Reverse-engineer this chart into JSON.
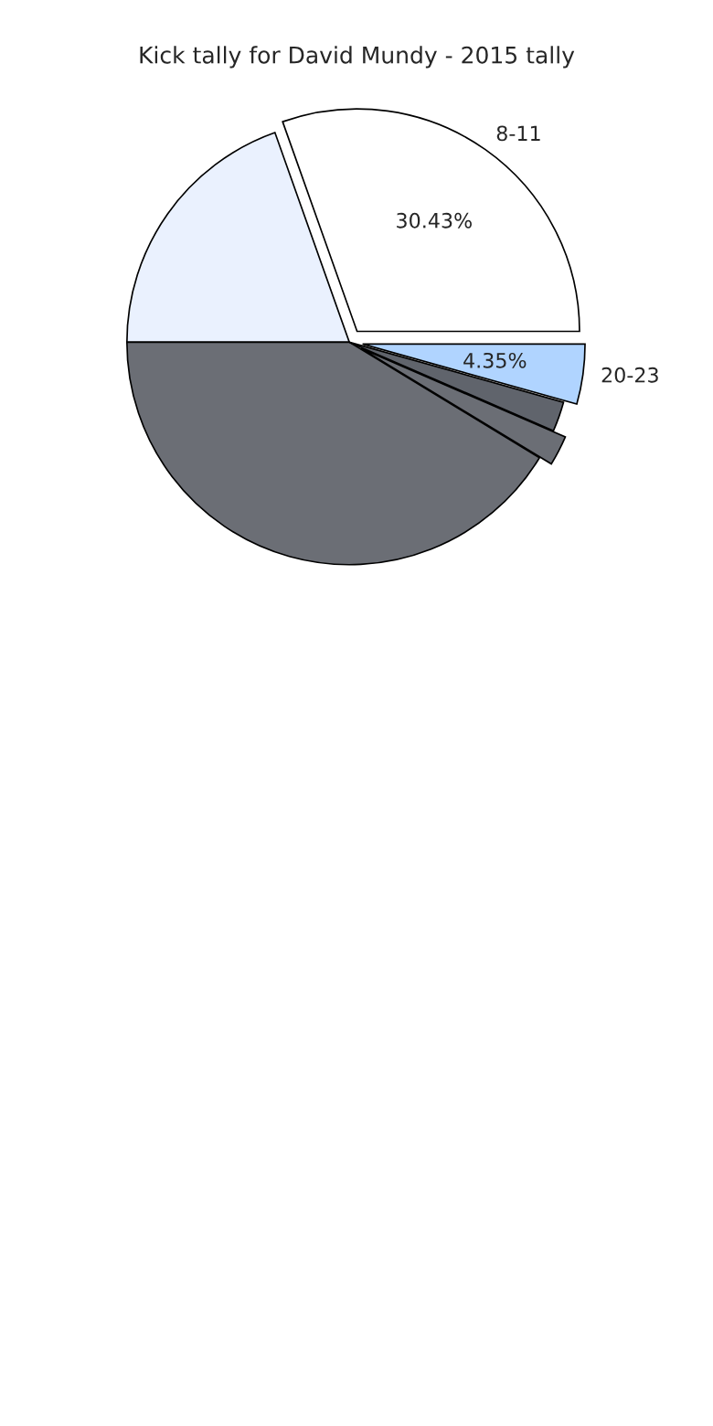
{
  "chart_data": {
    "type": "pie",
    "title": "Kick tally for David Mundy - 2015 tally",
    "categories": [
      "8-11",
      null,
      null,
      null,
      null,
      "20-23"
    ],
    "values": [
      30.43,
      19.57,
      41.31,
      2.17,
      2.17,
      4.35
    ],
    "colors": [
      "#ffffff",
      "#eaf1fe",
      "#6b6e75",
      "#6b6e75",
      "#60646c",
      "#b0d4ff"
    ],
    "value_labels": [
      "30.43%",
      null,
      null,
      null,
      null,
      "4.35%"
    ],
    "legend": false
  }
}
